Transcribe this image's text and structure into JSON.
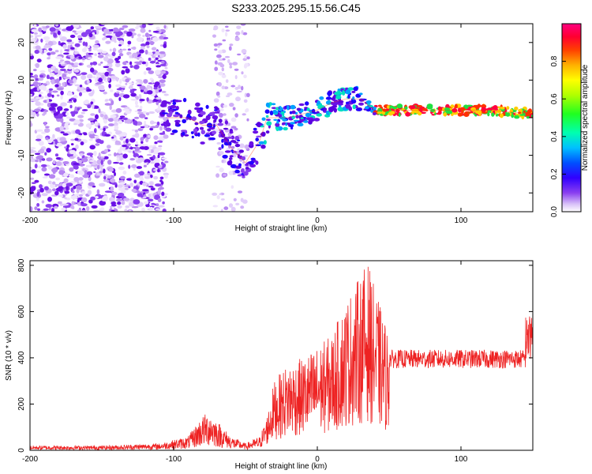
{
  "title": "S233.2025.295.15.56.C45",
  "chart_data": [
    {
      "type": "heatmap",
      "name": "spectrogram",
      "xlabel": "Height of straight line (km)",
      "ylabel": "Frequency (Hz)",
      "xlim": [
        -200,
        150
      ],
      "ylim": [
        -25,
        25
      ],
      "xticks": [
        -200,
        -100,
        0,
        100
      ],
      "yticks": [
        -20,
        -10,
        0,
        10,
        20
      ],
      "colorbar": {
        "label": "Normalized spectral amplitude",
        "range": [
          0,
          1
        ],
        "ticks": [
          0.0,
          0.2,
          0.4,
          0.6,
          0.8
        ],
        "colors": [
          "#ffffff",
          "#e8d8fb",
          "#c9a6f5",
          "#8a3ff0",
          "#5a00e0",
          "#2000ff",
          "#0060ff",
          "#00c8ff",
          "#00ffb0",
          "#20ff20",
          "#b0ff00",
          "#ffff00",
          "#ffb000",
          "#ff4000",
          "#ff0030",
          "#ff0080"
        ]
      },
      "ridge": {
        "x": [
          -105,
          -90,
          -80,
          -70,
          -60,
          -50,
          -45,
          -40,
          -35,
          -30,
          -20,
          -10,
          0,
          10,
          20,
          30,
          40,
          60,
          80,
          100,
          120,
          150
        ],
        "y": [
          0,
          0,
          -2,
          -2,
          -8,
          -12,
          -9,
          -6,
          0,
          0,
          0,
          1,
          2,
          4,
          5,
          5,
          2,
          2,
          2,
          2,
          2,
          1
        ]
      }
    },
    {
      "type": "line",
      "name": "snr",
      "xlabel": "Height of straight line (km)",
      "ylabel": "SNR (10 * v/v)",
      "xlim": [
        -200,
        150
      ],
      "ylim": [
        0,
        820
      ],
      "xticks": [
        -200,
        -100,
        0,
        100
      ],
      "yticks": [
        0,
        200,
        400,
        600,
        800
      ],
      "color": "#ee2222",
      "envelope": {
        "x": [
          -200,
          -150,
          -110,
          -90,
          -80,
          -75,
          -70,
          -60,
          -50,
          -40,
          -35,
          -30,
          -20,
          -10,
          0,
          10,
          20,
          30,
          35,
          40,
          45,
          50,
          60,
          70,
          80,
          100,
          120,
          140,
          150
        ],
        "y": [
          20,
          20,
          30,
          60,
          150,
          170,
          130,
          60,
          30,
          60,
          150,
          300,
          380,
          400,
          450,
          500,
          650,
          760,
          820,
          700,
          600,
          500,
          450,
          420,
          400,
          400,
          400,
          420,
          600
        ]
      }
    }
  ]
}
